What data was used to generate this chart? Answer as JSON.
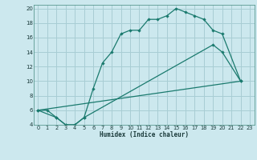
{
  "xlabel": "Humidex (Indice chaleur)",
  "background_color": "#cce8ee",
  "grid_color": "#a8cdd4",
  "line_color": "#1a7a6e",
  "xlim": [
    -0.5,
    23.5
  ],
  "ylim": [
    4,
    20.5
  ],
  "xticks": [
    0,
    1,
    2,
    3,
    4,
    5,
    6,
    7,
    8,
    9,
    10,
    11,
    12,
    13,
    14,
    15,
    16,
    17,
    18,
    19,
    20,
    21,
    22,
    23
  ],
  "yticks": [
    4,
    6,
    8,
    10,
    12,
    14,
    16,
    18,
    20
  ],
  "line1_x": [
    0,
    1,
    2,
    3,
    4,
    5,
    6,
    7,
    8,
    9,
    10,
    11,
    12,
    13,
    14,
    15,
    16,
    17,
    18,
    19,
    20,
    22
  ],
  "line1_y": [
    6,
    6,
    5,
    4,
    4,
    5,
    9,
    12.5,
    14,
    16.5,
    17,
    17,
    18.5,
    18.5,
    19,
    20,
    19.5,
    19,
    18.5,
    17,
    16.5,
    10
  ],
  "line2_x": [
    0,
    2,
    3,
    4,
    5,
    19,
    20,
    22
  ],
  "line2_y": [
    6,
    5,
    4,
    4,
    5,
    15,
    14,
    10
  ],
  "line3_x": [
    0,
    22
  ],
  "line3_y": [
    6,
    10
  ]
}
